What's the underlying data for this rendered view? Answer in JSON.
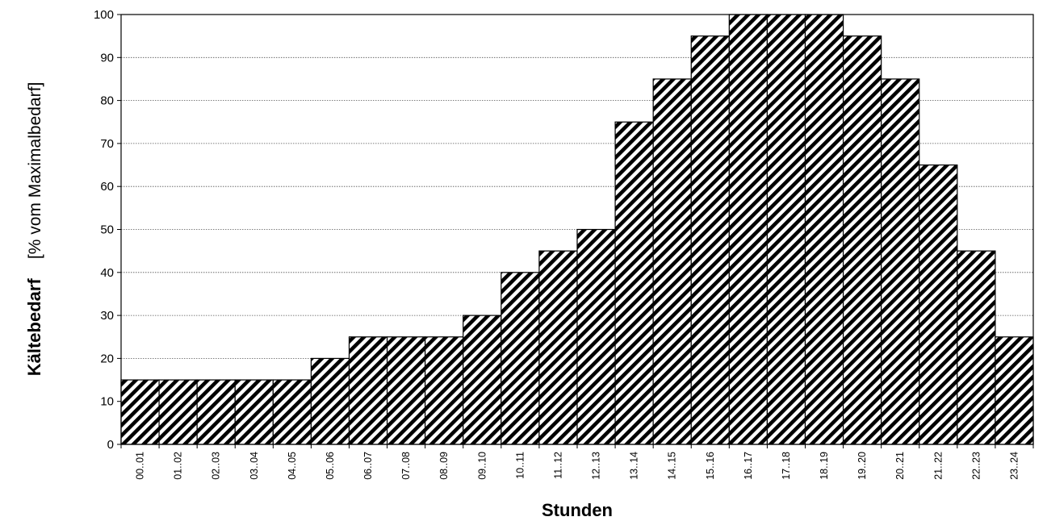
{
  "chart_data": {
    "type": "bar",
    "title": "",
    "xlabel": "Stunden",
    "ylabel_main": "Kältebedarf",
    "ylabel_unit": "[% vom Maximalbedarf]",
    "ylim": [
      0,
      100
    ],
    "yticks": [
      0,
      10,
      20,
      30,
      40,
      50,
      60,
      70,
      80,
      90,
      100
    ],
    "grid": "horizontal-dotted",
    "legend": "none",
    "bar_fill": "diagonal-hatch",
    "colors": {
      "hatch": "#000000",
      "background": "#ffffff",
      "grid": "#555555"
    },
    "categories": [
      "00..01",
      "01..02",
      "02..03",
      "03..04",
      "04..05",
      "05..06",
      "06..07",
      "07..08",
      "08..09",
      "09..10",
      "10..11",
      "11..12",
      "12..13",
      "13..14",
      "14..15",
      "15..16",
      "16..17",
      "17..18",
      "18..19",
      "19..20",
      "20..21",
      "21..22",
      "22..23",
      "23..24"
    ],
    "values": [
      15,
      15,
      15,
      15,
      15,
      20,
      25,
      25,
      25,
      30,
      40,
      45,
      50,
      75,
      85,
      95,
      100,
      100,
      100,
      95,
      85,
      65,
      45,
      25
    ]
  }
}
